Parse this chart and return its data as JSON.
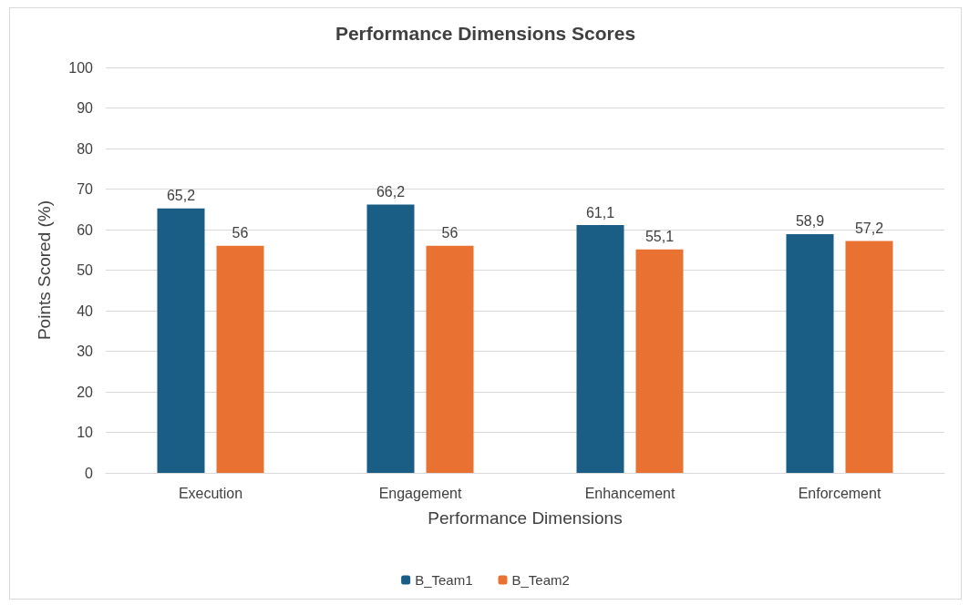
{
  "chart_data": {
    "type": "bar",
    "title": "Performance Dimensions Scores",
    "xlabel": "Performance Dimensions",
    "ylabel": "Points Scored (%)",
    "categories": [
      "Execution",
      "Engagement",
      "Enhancement",
      "Enforcement"
    ],
    "series": [
      {
        "name": "B_Team1",
        "color": "#1b5e85",
        "values": [
          65.2,
          66.2,
          61.1,
          58.9
        ],
        "value_labels": [
          "65,2",
          "66,2",
          "61,1",
          "58,9"
        ]
      },
      {
        "name": "B_Team2",
        "color": "#e97132",
        "values": [
          56,
          56,
          55.1,
          57.2
        ],
        "value_labels": [
          "56",
          "56",
          "55,1",
          "57,2"
        ]
      }
    ],
    "ylim": [
      0,
      100
    ],
    "yticks": [
      0,
      10,
      20,
      30,
      40,
      50,
      60,
      70,
      80,
      90,
      100
    ],
    "grid": "y",
    "legend": "bottom"
  }
}
